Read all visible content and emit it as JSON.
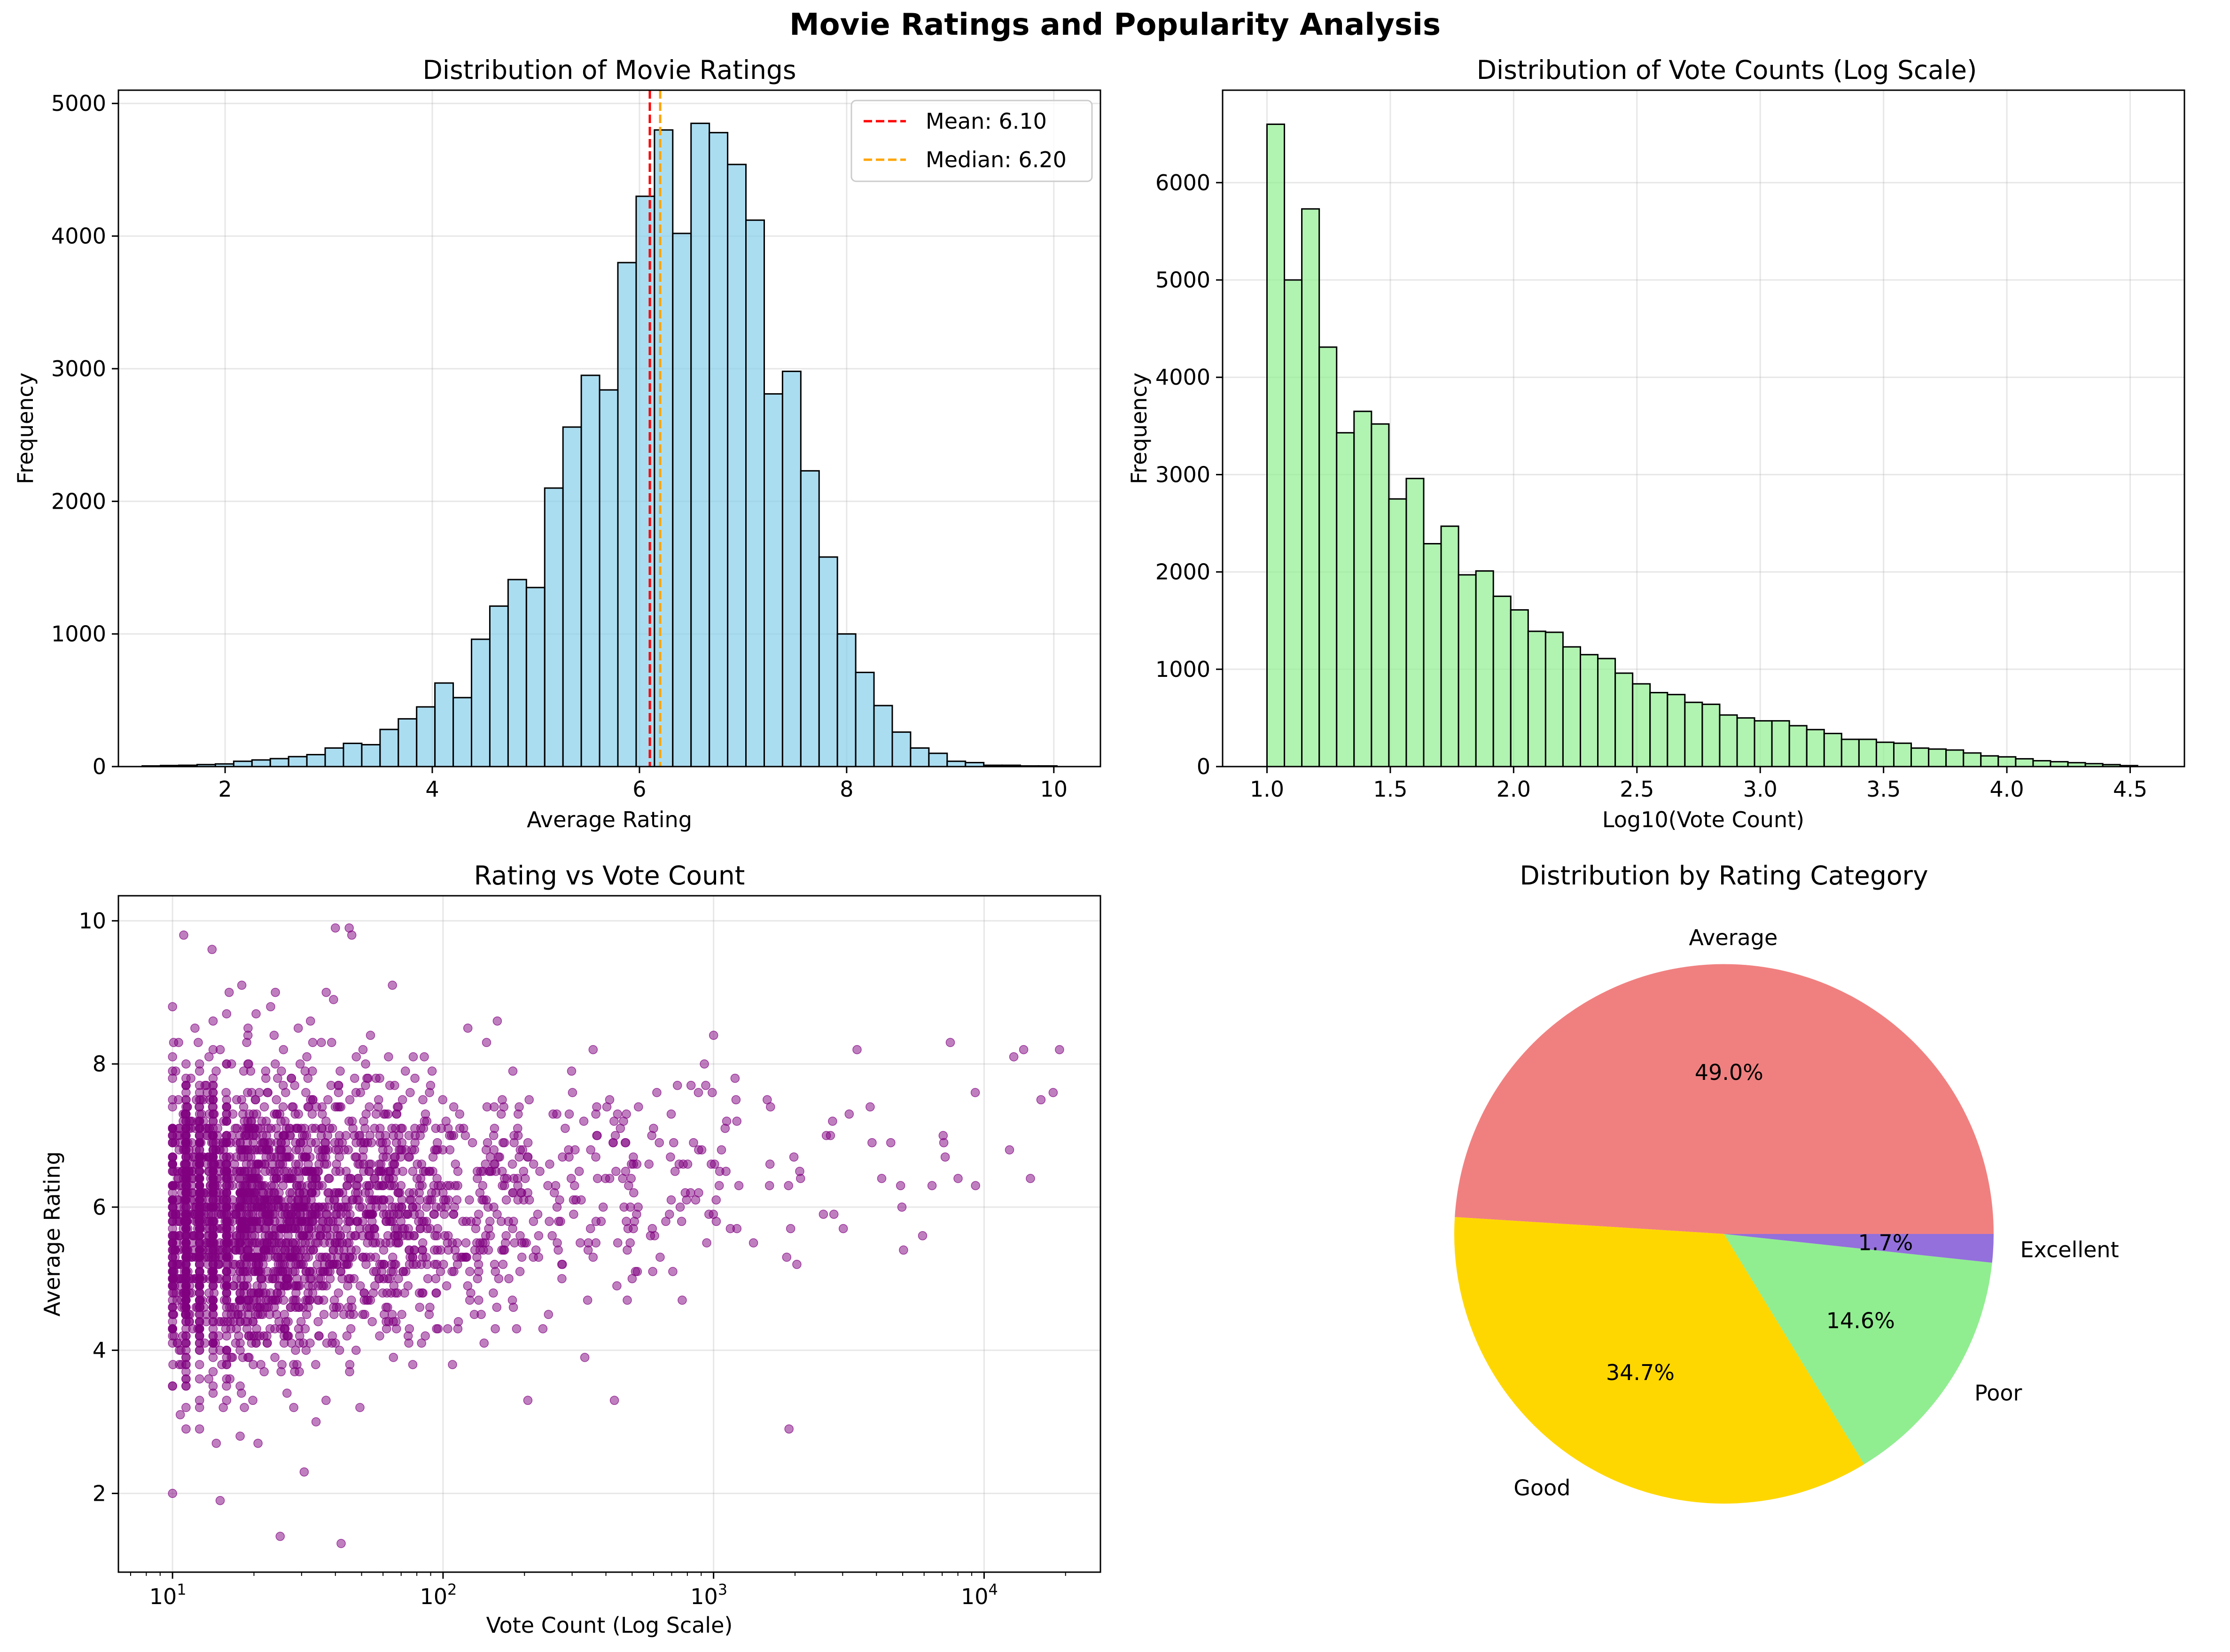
{
  "figure": {
    "title": "Movie Ratings and Popularity Analysis"
  },
  "chart_data": [
    {
      "type": "bar",
      "title": "Distribution of Movie Ratings",
      "xlabel": "Average Rating",
      "ylabel": "Frequency",
      "xlim": [
        0.97,
        10.45
      ],
      "ylim": [
        0,
        5100
      ],
      "xticks": [
        2,
        4,
        6,
        8,
        10
      ],
      "yticks": [
        0,
        1000,
        2000,
        3000,
        4000,
        5000
      ],
      "bin_start": 1.2,
      "bin_width": 0.1766,
      "values": [
        5,
        8,
        10,
        15,
        20,
        40,
        50,
        60,
        75,
        90,
        140,
        175,
        165,
        280,
        360,
        450,
        630,
        520,
        960,
        1210,
        1410,
        1350,
        2100,
        2560,
        2950,
        2840,
        3800,
        4300,
        4800,
        4020,
        4850,
        4780,
        4540,
        4120,
        2810,
        2980,
        2230,
        1580,
        1000,
        710,
        460,
        260,
        140,
        100,
        40,
        30,
        10,
        10,
        5,
        5
      ],
      "bar_color": "#87CEEB",
      "vlines": [
        {
          "label": "Mean: 6.10",
          "value": 6.1,
          "color": "#FF0000"
        },
        {
          "label": "Median: 6.20",
          "value": 6.2,
          "color": "#FFA500"
        }
      ],
      "legend_position": "upper right",
      "grid": true
    },
    {
      "type": "bar",
      "title": "Distribution of Vote Counts (Log Scale)",
      "xlabel": "Log10(Vote Count)",
      "ylabel": "Frequency",
      "xlim": [
        0.82,
        4.72
      ],
      "ylim": [
        0,
        6950
      ],
      "xticks": [
        1.0,
        1.5,
        2.0,
        2.5,
        3.0,
        3.5,
        4.0,
        4.5
      ],
      "yticks": [
        0,
        1000,
        2000,
        3000,
        4000,
        5000,
        6000
      ],
      "bin_start": 1.0,
      "bin_width": 0.0706,
      "values": [
        6600,
        5000,
        5730,
        4310,
        3430,
        3650,
        3520,
        2750,
        2960,
        2290,
        2470,
        1970,
        2010,
        1750,
        1610,
        1390,
        1380,
        1230,
        1150,
        1110,
        960,
        850,
        760,
        740,
        660,
        640,
        530,
        500,
        470,
        470,
        420,
        380,
        340,
        280,
        280,
        250,
        240,
        190,
        180,
        170,
        140,
        110,
        100,
        80,
        60,
        50,
        40,
        30,
        20,
        10
      ],
      "bar_color": "#90EE90",
      "grid": true
    },
    {
      "type": "scatter",
      "title": "Rating vs Vote Count",
      "xlabel": "Vote Count (Log Scale)",
      "ylabel": "Average Rating",
      "xscale": "log",
      "xlim_log10": [
        0.8,
        4.43
      ],
      "ylim": [
        0.9,
        10.35
      ],
      "xticks": [
        "10^1",
        "10^2",
        "10^3",
        "10^4"
      ],
      "yticks": [
        2,
        4,
        6,
        8,
        10
      ],
      "point_color": "#800080",
      "notable_points": [
        {
          "votes": 11,
          "rating": 9.8
        },
        {
          "votes": 14,
          "rating": 9.6
        },
        {
          "votes": 40,
          "rating": 9.9
        },
        {
          "votes": 45,
          "rating": 9.9
        },
        {
          "votes": 46,
          "rating": 9.8
        },
        {
          "votes": 25,
          "rating": 1.4
        },
        {
          "votes": 42,
          "rating": 1.3
        },
        {
          "votes": 15,
          "rating": 1.9
        },
        {
          "votes": 10,
          "rating": 2.0
        },
        {
          "votes": 1900,
          "rating": 2.9
        },
        {
          "votes": 430,
          "rating": 3.3
        },
        {
          "votes": 19000,
          "rating": 8.2
        },
        {
          "votes": 18000,
          "rating": 7.6
        },
        {
          "votes": 14000,
          "rating": 8.2
        },
        {
          "votes": 7500,
          "rating": 8.3
        },
        {
          "votes": 1000,
          "rating": 8.4
        },
        {
          "votes": 65,
          "rating": 9.1
        },
        {
          "votes": 24,
          "rating": 9.0
        },
        {
          "votes": 37,
          "rating": 9.0
        }
      ],
      "grid": true
    },
    {
      "type": "pie",
      "title": "Distribution by Rating Category",
      "slices": [
        {
          "label": "Average",
          "value": 49.0,
          "pct": "49.0%",
          "color": "#F08080"
        },
        {
          "label": "Good",
          "value": 34.7,
          "pct": "34.7%",
          "color": "#FFD700"
        },
        {
          "label": "Poor",
          "value": 14.6,
          "pct": "14.6%",
          "color": "#90EE90"
        },
        {
          "label": "Excellent",
          "value": 1.7,
          "pct": "1.7%",
          "color": "#9370DB"
        }
      ]
    }
  ]
}
